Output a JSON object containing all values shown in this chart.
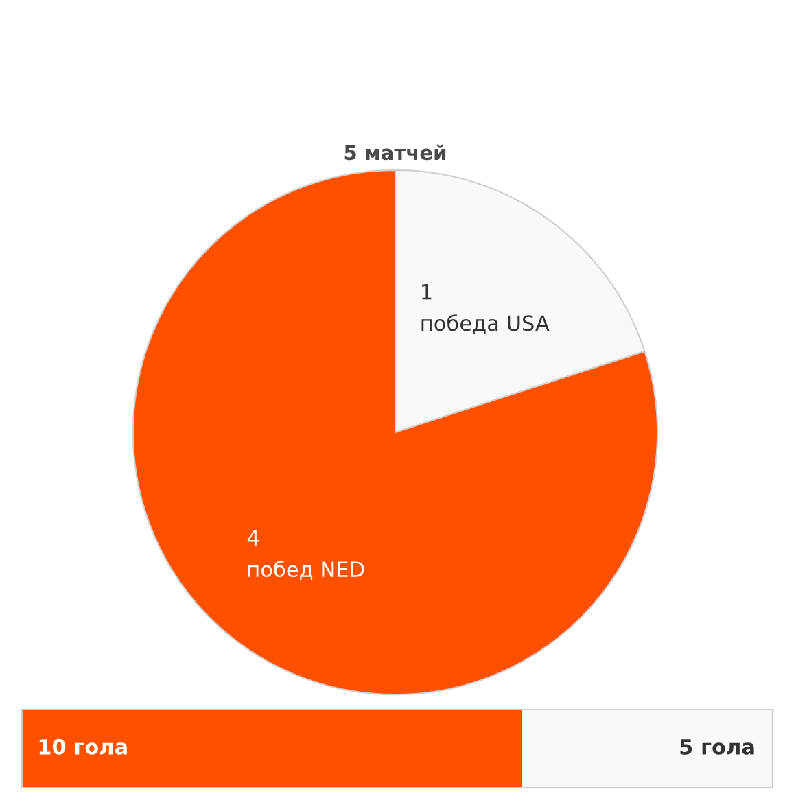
{
  "chart_data": [
    {
      "type": "pie",
      "title": "5 матчей",
      "categories": [
        "победа USA",
        "побед NED"
      ],
      "values": [
        1,
        4
      ],
      "colors": [
        "#f9f9f9",
        "#ff5000"
      ],
      "data_labels": true
    },
    {
      "type": "bar",
      "orientation": "horizontal",
      "stacked": true,
      "categories": [
        null
      ],
      "series": [
        {
          "color": "#ff5000",
          "values": [
            10
          ],
          "value_labels": [
            "10 гола"
          ]
        },
        {
          "color": "#f9f9f9",
          "values": [
            5
          ],
          "value_labels": [
            "5 гола"
          ]
        }
      ],
      "xlim": [
        0,
        15
      ],
      "tick_labels": false
    }
  ]
}
